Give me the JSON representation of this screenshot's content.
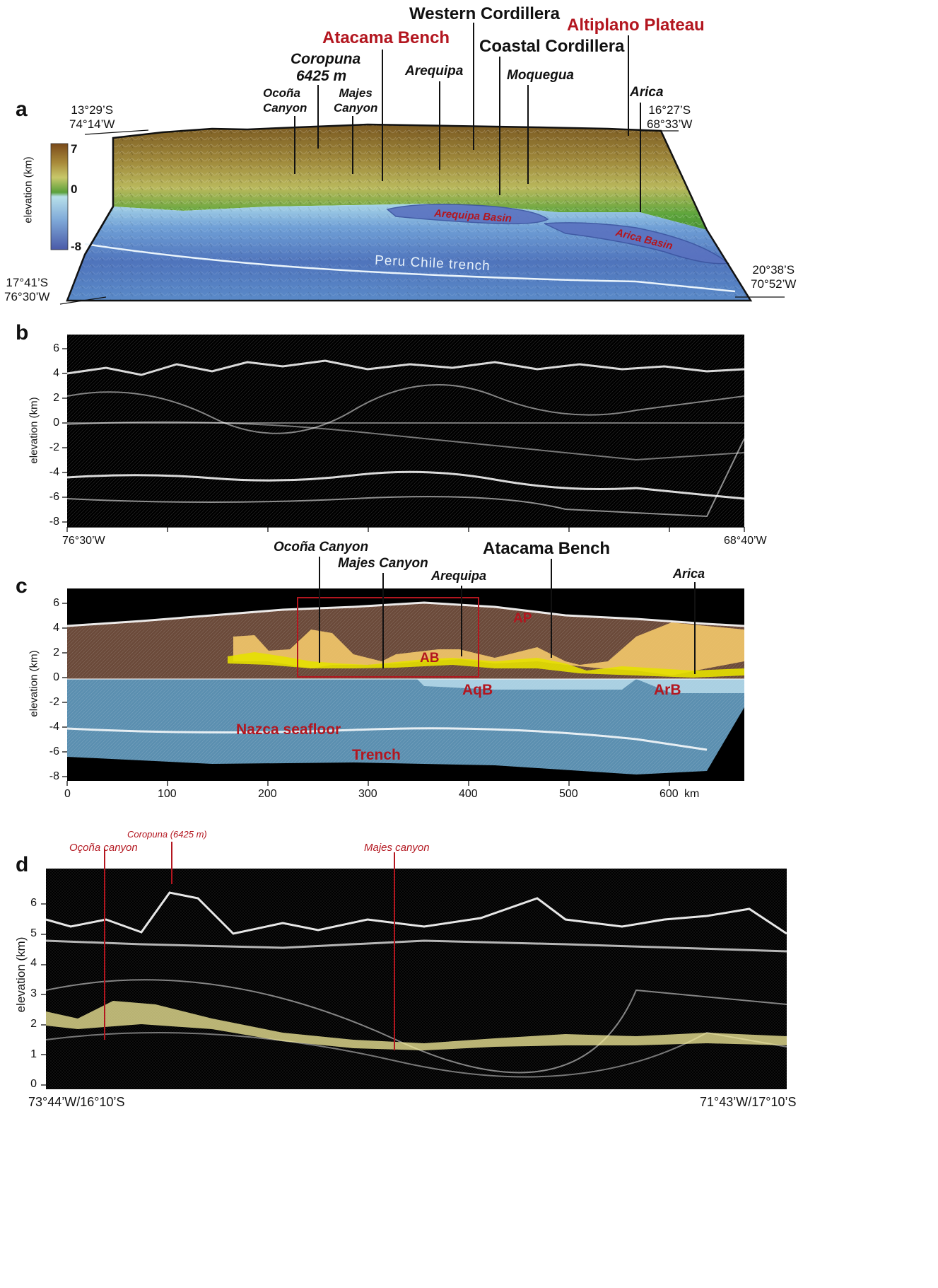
{
  "panel_a": {
    "label": "a",
    "colorbar": {
      "title": "elevation (km)",
      "max": "7",
      "mid": "0",
      "min": "-8"
    },
    "corners": {
      "nw": [
        "13°29’S",
        "74°14’W"
      ],
      "ne": [
        "16°27’S",
        "68°33’W"
      ],
      "sw": [
        "17°41’S",
        "76°30’W"
      ],
      "se": [
        "20°38’S",
        "70°52’W"
      ]
    },
    "labels": {
      "western_cordillera": "Western Cordillera",
      "atacama_bench": "Atacama Bench",
      "altiplano": "Altiplano Plateau",
      "coropuna": "Coropuna",
      "coropuna_elev": "6425 m",
      "coastal_cordillera": "Coastal Cordillera",
      "arequipa": "Arequipa",
      "moquegua": "Moquegua",
      "ocona_1": "Ocoña",
      "ocona_2": "Canyon",
      "majes_1": "Majes",
      "majes_2": "Canyon",
      "arica": "Arica",
      "arequipa_basin": "Arequipa Basin",
      "arica_basin": "Arica Basin",
      "trench": "Peru  Chile trench"
    },
    "colors": {
      "highland": "#8a6a2a",
      "lowland": "#4f9a35",
      "shelf": "#9ccbe0",
      "deep": "#4467b2",
      "annotation_red": "#b3161f"
    }
  },
  "panel_b": {
    "label": "b",
    "ylabel": "elevation (km)",
    "yticks": [
      "6",
      "4",
      "2",
      "0",
      "-2",
      "-4",
      "-6",
      "-8"
    ],
    "x_left": "76°30’W",
    "x_right": "68°40’W"
  },
  "panel_c": {
    "label": "c",
    "ylabel": "elevation (km)",
    "yticks": [
      "6",
      "4",
      "2",
      "0",
      "-2",
      "-4",
      "-6",
      "-8"
    ],
    "xticks": [
      "0",
      "100",
      "200",
      "300",
      "400",
      "500",
      "600"
    ],
    "xunit": "km",
    "top_labels": {
      "ocona": "Ocoña Canyon",
      "majes": "Majes Canyon",
      "arequipa": "Arequipa",
      "atacama": "Atacama Bench",
      "arica": "Arica"
    },
    "in_labels": {
      "ap": "AP",
      "ab": "AB",
      "aqb": "AqB",
      "arb": "ArB",
      "nazca": "Nazca seafloor",
      "trench": "Trench"
    }
  },
  "panel_d": {
    "label": "d",
    "ylabel": "elevation (km)",
    "yticks": [
      "6",
      "5",
      "4",
      "3",
      "2",
      "1",
      "0"
    ],
    "x_left": "73°44’W/16°10’S",
    "x_right": "71°43’W/17°10’S",
    "labels": {
      "ocona": "Oçoña canyon",
      "coropuna": "Coropuna  (6425 m)",
      "majes": "Majes canyon"
    }
  }
}
